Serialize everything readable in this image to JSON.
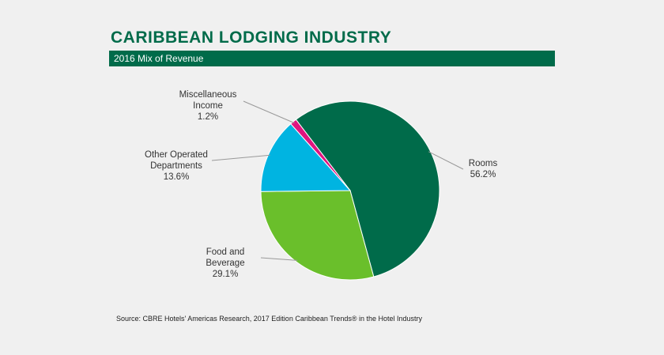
{
  "chart_data": {
    "type": "pie",
    "title": "CARIBBEAN LODGING INDUSTRY",
    "subtitle": "2016 Mix of Revenue",
    "categories": [
      "Rooms",
      "Food and Beverage",
      "Other Operated Departments",
      "Miscellaneous Income"
    ],
    "values": [
      56.2,
      29.1,
      13.6,
      1.2
    ],
    "value_labels": [
      "56.2%",
      "29.1%",
      "13.6%",
      "1.2%"
    ],
    "colors": [
      "#006b4a",
      "#6abf2b",
      "#00b4e1",
      "#e0147f"
    ],
    "source": "Source: CBRE Hotels' Americas Research, 2017 Edition Caribbean Trends® in the Hotel Industry"
  }
}
